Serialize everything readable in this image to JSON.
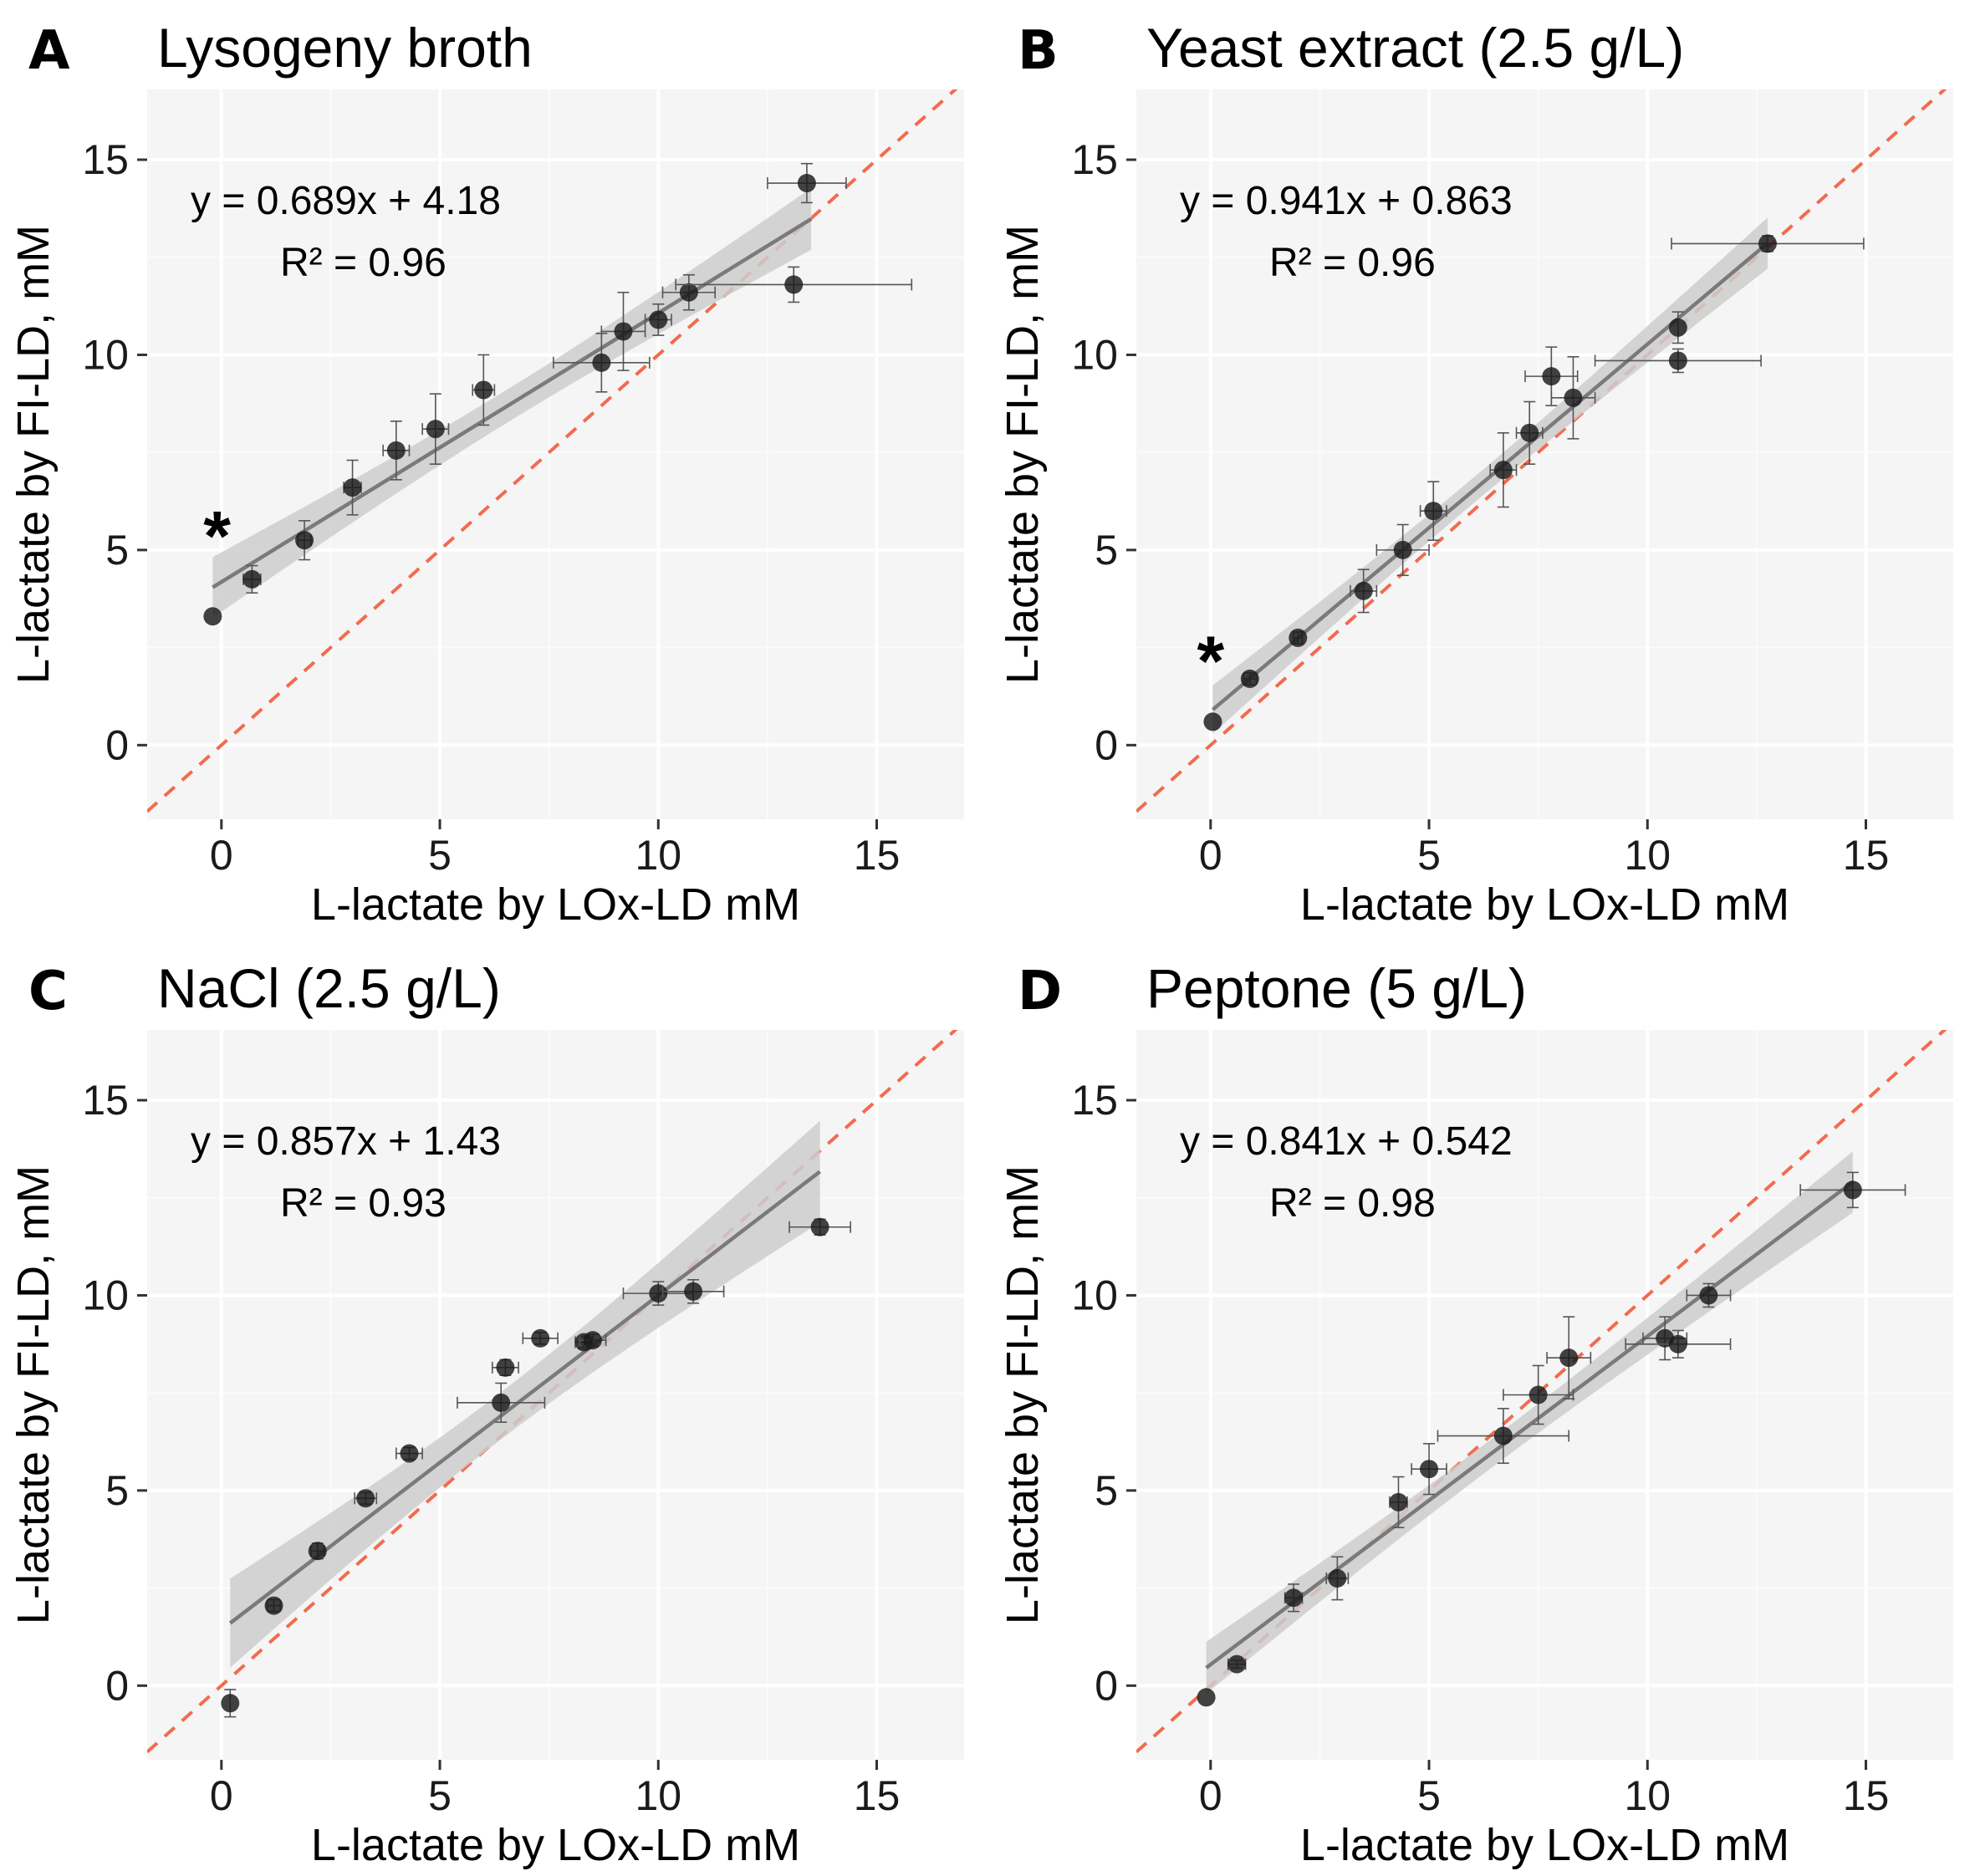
{
  "chart_data": [
    {
      "type": "scatter",
      "panel": "A",
      "title": "Lysogeny broth",
      "xlabel": "L-lactate by LOx-LD mM",
      "ylabel": "L-lactate by FI-LD, mM",
      "xlim": [
        -1.7,
        17.0
      ],
      "ylim": [
        -1.9,
        16.8
      ],
      "xticks": [
        0,
        5,
        10,
        15
      ],
      "yticks": [
        0,
        5,
        10,
        15
      ],
      "equation": "y = 0.689x + 4.18",
      "r2": "R² = 0.96",
      "annotation": "*",
      "annotation_at": [
        -0.1,
        5.6
      ],
      "fit": {
        "slope": 0.689,
        "intercept": 4.18,
        "x_range": [
          -0.2,
          13.5
        ]
      },
      "points": [
        {
          "x": -0.2,
          "y": 3.3,
          "xerr": 0,
          "yerr": 0
        },
        {
          "x": 0.7,
          "y": 4.25,
          "xerr": 0.2,
          "yerr": 0.35
        },
        {
          "x": 1.9,
          "y": 5.25,
          "xerr": 0.15,
          "yerr": 0.5
        },
        {
          "x": 3.0,
          "y": 6.6,
          "xerr": 0.2,
          "yerr": 0.7
        },
        {
          "x": 4.0,
          "y": 7.55,
          "xerr": 0.3,
          "yerr": 0.75
        },
        {
          "x": 4.9,
          "y": 8.1,
          "xerr": 0.3,
          "yerr": 0.9
        },
        {
          "x": 6.0,
          "y": 9.1,
          "xerr": 0.25,
          "yerr": 0.9
        },
        {
          "x": 8.7,
          "y": 9.8,
          "xerr": 1.1,
          "yerr": 0.75
        },
        {
          "x": 9.2,
          "y": 10.6,
          "xerr": 0.5,
          "yerr": 1.0
        },
        {
          "x": 10.0,
          "y": 10.9,
          "xerr": 0.3,
          "yerr": 0.4
        },
        {
          "x": 10.7,
          "y": 11.6,
          "xerr": 0.6,
          "yerr": 0.45
        },
        {
          "x": 13.1,
          "y": 11.8,
          "xerr": 2.7,
          "yerr": 0.45
        },
        {
          "x": 13.4,
          "y": 14.4,
          "xerr": 0.9,
          "yerr": 0.5
        }
      ]
    },
    {
      "type": "scatter",
      "panel": "B",
      "title": "Yeast extract (2.5 g/L)",
      "xlabel": "L-lactate by LOx-LD mM",
      "ylabel": "L-lactate by FI-LD, mM",
      "xlim": [
        -1.7,
        17.0
      ],
      "ylim": [
        -1.9,
        16.8
      ],
      "xticks": [
        0,
        5,
        10,
        15
      ],
      "yticks": [
        0,
        5,
        10,
        15
      ],
      "equation": "y = 0.941x + 0.863",
      "r2": "R² = 0.96",
      "annotation": "*",
      "annotation_at": [
        0.0,
        2.4
      ],
      "fit": {
        "slope": 0.941,
        "intercept": 0.863,
        "x_range": [
          0.05,
          12.75
        ]
      },
      "points": [
        {
          "x": 0.05,
          "y": 0.6,
          "xerr": 0,
          "yerr": 0
        },
        {
          "x": 0.9,
          "y": 1.7,
          "xerr": 0.15,
          "yerr": 0.15
        },
        {
          "x": 2.0,
          "y": 2.75,
          "xerr": 0.1,
          "yerr": 0.15
        },
        {
          "x": 3.5,
          "y": 3.95,
          "xerr": 0.3,
          "yerr": 0.55
        },
        {
          "x": 4.4,
          "y": 5.0,
          "xerr": 0.6,
          "yerr": 0.65
        },
        {
          "x": 5.1,
          "y": 6.0,
          "xerr": 0.3,
          "yerr": 0.75
        },
        {
          "x": 6.7,
          "y": 7.05,
          "xerr": 0.3,
          "yerr": 0.95
        },
        {
          "x": 7.3,
          "y": 8.0,
          "xerr": 0.3,
          "yerr": 0.8
        },
        {
          "x": 7.8,
          "y": 9.45,
          "xerr": 0.6,
          "yerr": 0.75
        },
        {
          "x": 8.3,
          "y": 8.9,
          "xerr": 0.5,
          "yerr": 1.05
        },
        {
          "x": 10.7,
          "y": 10.7,
          "xerr": 0,
          "yerr": 0.4
        },
        {
          "x": 10.7,
          "y": 9.85,
          "xerr": 1.9,
          "yerr": 0.3
        },
        {
          "x": 12.75,
          "y": 12.85,
          "xerr": 2.2,
          "yerr": 0.2
        }
      ]
    },
    {
      "type": "scatter",
      "panel": "C",
      "title": "NaCl (2.5 g/L)",
      "xlabel": "L-lactate by LOx-LD mM",
      "ylabel": "L-lactate by FI-LD, mM",
      "xlim": [
        -1.7,
        17.0
      ],
      "ylim": [
        -1.9,
        16.8
      ],
      "xticks": [
        0,
        5,
        10,
        15
      ],
      "yticks": [
        0,
        5,
        10,
        15
      ],
      "equation": "y = 0.857x + 1.43",
      "r2": "R² = 0.93",
      "annotation": "",
      "fit": {
        "slope": 0.857,
        "intercept": 1.43,
        "x_range": [
          0.2,
          13.7
        ]
      },
      "points": [
        {
          "x": 0.2,
          "y": -0.45,
          "xerr": 0,
          "yerr": 0.35
        },
        {
          "x": 1.2,
          "y": 2.05,
          "xerr": 0.15,
          "yerr": 0.15
        },
        {
          "x": 2.2,
          "y": 3.45,
          "xerr": 0.15,
          "yerr": 0.2
        },
        {
          "x": 3.3,
          "y": 4.8,
          "xerr": 0.25,
          "yerr": 0.15
        },
        {
          "x": 4.3,
          "y": 5.95,
          "xerr": 0.3,
          "yerr": 0.15
        },
        {
          "x": 6.4,
          "y": 7.25,
          "xerr": 1.0,
          "yerr": 0.5
        },
        {
          "x": 6.5,
          "y": 8.15,
          "xerr": 0.3,
          "yerr": 0.2
        },
        {
          "x": 7.3,
          "y": 8.9,
          "xerr": 0.4,
          "yerr": 0.15
        },
        {
          "x": 8.3,
          "y": 8.8,
          "xerr": 0.2,
          "yerr": 0.15
        },
        {
          "x": 8.5,
          "y": 8.85,
          "xerr": 0.3,
          "yerr": 0.15
        },
        {
          "x": 10.0,
          "y": 10.05,
          "xerr": 0.8,
          "yerr": 0.3
        },
        {
          "x": 10.8,
          "y": 10.1,
          "xerr": 0.7,
          "yerr": 0.3
        },
        {
          "x": 13.7,
          "y": 11.75,
          "xerr": 0.7,
          "yerr": 0.2
        }
      ]
    },
    {
      "type": "scatter",
      "panel": "D",
      "title": "Peptone (5 g/L)",
      "xlabel": "L-lactate by LOx-LD mM",
      "ylabel": "L-lactate by FI-LD, mM",
      "xlim": [
        -1.7,
        17.0
      ],
      "ylim": [
        -1.9,
        16.8
      ],
      "xticks": [
        0,
        5,
        10,
        15
      ],
      "yticks": [
        0,
        5,
        10,
        15
      ],
      "equation": "y = 0.841x + 0.542",
      "r2": "R² = 0.98",
      "annotation": "",
      "fit": {
        "slope": 0.841,
        "intercept": 0.542,
        "x_range": [
          -0.1,
          14.7
        ]
      },
      "points": [
        {
          "x": -0.1,
          "y": -0.3,
          "xerr": 0,
          "yerr": 0
        },
        {
          "x": 0.6,
          "y": 0.55,
          "xerr": 0.2,
          "yerr": 0.1
        },
        {
          "x": 1.9,
          "y": 2.25,
          "xerr": 0.2,
          "yerr": 0.35
        },
        {
          "x": 2.9,
          "y": 2.75,
          "xerr": 0.25,
          "yerr": 0.55
        },
        {
          "x": 4.3,
          "y": 4.7,
          "xerr": 0.2,
          "yerr": 0.65
        },
        {
          "x": 5.0,
          "y": 5.55,
          "xerr": 0.4,
          "yerr": 0.65
        },
        {
          "x": 6.7,
          "y": 6.4,
          "xerr": 1.5,
          "yerr": 0.7
        },
        {
          "x": 7.5,
          "y": 7.45,
          "xerr": 0.8,
          "yerr": 0.75
        },
        {
          "x": 8.2,
          "y": 8.4,
          "xerr": 0.5,
          "yerr": 1.05
        },
        {
          "x": 10.4,
          "y": 8.9,
          "xerr": 0.5,
          "yerr": 0.55
        },
        {
          "x": 10.7,
          "y": 8.75,
          "xerr": 1.2,
          "yerr": 0.35
        },
        {
          "x": 11.4,
          "y": 10.0,
          "xerr": 0.5,
          "yerr": 0.3
        },
        {
          "x": 14.7,
          "y": 12.7,
          "xerr": 1.2,
          "yerr": 0.45
        }
      ]
    }
  ]
}
